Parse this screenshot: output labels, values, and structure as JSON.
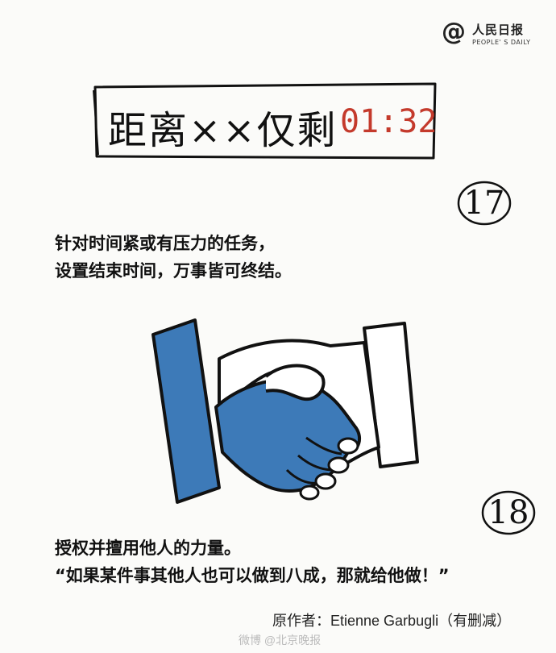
{
  "logo": {
    "symbol": "@",
    "name": "人民日报",
    "english": "PEOPLE' S DAILY"
  },
  "countdown": {
    "label": "距离××仅剩",
    "time": "01:32"
  },
  "tips": [
    {
      "number": "17",
      "lines": [
        "针对时间紧或有压力的任务，",
        "设置结束时间，万事皆可终结。"
      ]
    },
    {
      "number": "18",
      "lines": [
        "授权并擅用他人的力量。",
        "“如果某件事其他人也可以做到八成，那就给他做！”"
      ]
    }
  ],
  "credit": "原作者：Etienne Garbugli（有删减）",
  "watermark": "微博 @北京晚报",
  "colors": {
    "accent_red": "#c43a2c",
    "sleeve_blue": "#3d7ab8",
    "ink": "#111111"
  },
  "icons": {
    "handshake": "handshake-icon"
  }
}
